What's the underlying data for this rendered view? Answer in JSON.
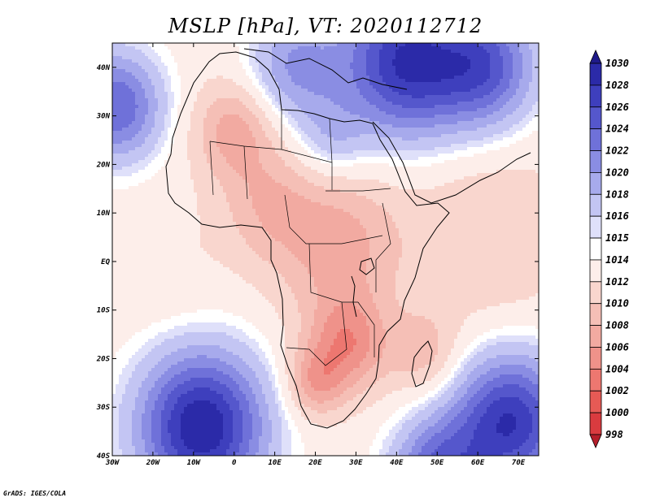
{
  "title": "MSLP [hPa], VT: 2020112712",
  "credit": "GrADS: IGES/COLA",
  "map": {
    "lon_range": [
      -30,
      75
    ],
    "lat_range": [
      -40,
      45
    ],
    "x_ticks": [
      {
        "lon": -30,
        "label": "30W"
      },
      {
        "lon": -20,
        "label": "20W"
      },
      {
        "lon": -10,
        "label": "10W"
      },
      {
        "lon": 0,
        "label": "0"
      },
      {
        "lon": 10,
        "label": "10E"
      },
      {
        "lon": 20,
        "label": "20E"
      },
      {
        "lon": 30,
        "label": "30E"
      },
      {
        "lon": 40,
        "label": "40E"
      },
      {
        "lon": 50,
        "label": "50E"
      },
      {
        "lon": 60,
        "label": "60E"
      },
      {
        "lon": 70,
        "label": "70E"
      }
    ],
    "y_ticks": [
      {
        "lat": 40,
        "label": "40N"
      },
      {
        "lat": 30,
        "label": "30N"
      },
      {
        "lat": 20,
        "label": "20N"
      },
      {
        "lat": 10,
        "label": "10N"
      },
      {
        "lat": 0,
        "label": "EQ"
      },
      {
        "lat": -10,
        "label": "10S"
      },
      {
        "lat": -20,
        "label": "20S"
      },
      {
        "lat": -30,
        "label": "30S"
      },
      {
        "lat": -40,
        "label": "40S"
      }
    ],
    "background_level": 1013,
    "pressure_centers": [
      {
        "lon": -29,
        "lat": 32,
        "value": 1024,
        "spread": 8
      },
      {
        "lon": -8,
        "lat": -34,
        "value": 1030,
        "spread": 11
      },
      {
        "lon": 68,
        "lat": -33,
        "value": 1028,
        "spread": 10
      },
      {
        "lon": 42,
        "lat": 41,
        "value": 1028,
        "spread": 11
      },
      {
        "lon": 62,
        "lat": 40,
        "value": 1024,
        "spread": 9
      },
      {
        "lon": 15,
        "lat": 40,
        "value": 1020,
        "spread": 8
      },
      {
        "lon": 24,
        "lat": 25,
        "value": 1017,
        "spread": 6
      },
      {
        "lon": 50,
        "lat": -44,
        "value": 1024,
        "spread": 8
      },
      {
        "lon": 0,
        "lat": 27,
        "value": 1007,
        "spread": 7
      },
      {
        "lon": 25,
        "lat": 4,
        "value": 1007,
        "spread": 11
      },
      {
        "lon": 28,
        "lat": -17,
        "value": 1005,
        "spread": 7
      },
      {
        "lon": 20,
        "lat": -25,
        "value": 1007,
        "spread": 5
      },
      {
        "lon": 8,
        "lat": 12,
        "value": 1009,
        "spread": 8
      },
      {
        "lon": 62,
        "lat": 5,
        "value": 1010,
        "spread": 14
      },
      {
        "lon": 47,
        "lat": -19,
        "value": 1009,
        "spread": 6
      },
      {
        "lon": -15,
        "lat": -2,
        "value": 1012,
        "spread": 10
      }
    ]
  },
  "colorbar": {
    "levels": [
      "998",
      "1000",
      "1002",
      "1004",
      "1006",
      "1008",
      "1010",
      "1012",
      "1014",
      "1015",
      "1016",
      "1018",
      "1020",
      "1022",
      "1024",
      "1026",
      "1028",
      "1030"
    ],
    "colors": [
      "#b41e2a",
      "#d93b3f",
      "#e65a55",
      "#ed7770",
      "#ef928a",
      "#f2aaa1",
      "#f5bfb6",
      "#f9d6ce",
      "#fdeeea",
      "#ffffff",
      "#dfe0fa",
      "#c3c5f3",
      "#a7aaec",
      "#8a8de3",
      "#6f71d9",
      "#5557cc",
      "#3e3fbd",
      "#2b2aa8",
      "#1f1a8a"
    ]
  }
}
